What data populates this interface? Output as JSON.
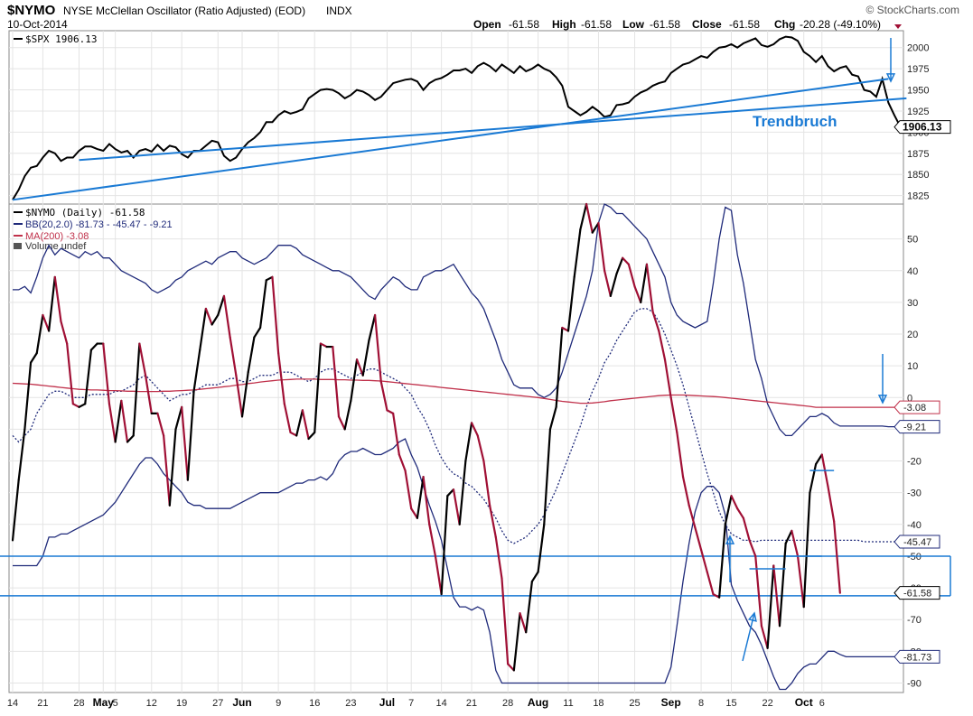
{
  "header": {
    "symbol": "$NYMO",
    "name": "NYSE McClellan Oscillator (Ratio Adjusted) (EOD)",
    "exchange": "INDX",
    "date": "10-Oct-2014",
    "watermark": "© StockCharts.com",
    "ohlc": {
      "open_label": "Open",
      "open": "-61.58",
      "high_label": "High",
      "high": "-61.58",
      "low_label": "Low",
      "low": "-61.58",
      "close_label": "Close",
      "close": "-61.58",
      "chg_label": "Chg",
      "chg": "-20.28 (-49.10%)"
    }
  },
  "colors": {
    "price_line": "#000000",
    "osc_down": "#a01035",
    "bb": "#1f2a7a",
    "ma200": "#c0304a",
    "annotation": "#1a7ad4",
    "grid": "#e4e4e4"
  },
  "annotation_text": "Trendbruch",
  "chart_data": [
    {
      "type": "line",
      "panel": "top",
      "legend": "$SPX 1906.13",
      "last_value_label": "1906.13",
      "yticks": [
        1825,
        1850,
        1875,
        1900,
        1925,
        1950,
        1975,
        2000
      ],
      "ylim": [
        1815,
        2020
      ],
      "series": [
        {
          "name": "$SPX",
          "values": [
            1820,
            1832,
            1848,
            1858,
            1860,
            1870,
            1878,
            1875,
            1866,
            1870,
            1870,
            1878,
            1883,
            1883,
            1880,
            1878,
            1886,
            1880,
            1876,
            1878,
            1870,
            1878,
            1880,
            1877,
            1885,
            1878,
            1884,
            1882,
            1874,
            1870,
            1878,
            1878,
            1884,
            1890,
            1888,
            1872,
            1866,
            1870,
            1880,
            1888,
            1893,
            1900,
            1912,
            1912,
            1920,
            1925,
            1922,
            1924,
            1927,
            1940,
            1945,
            1950,
            1951,
            1950,
            1946,
            1940,
            1944,
            1950,
            1948,
            1944,
            1938,
            1942,
            1950,
            1958,
            1960,
            1962,
            1963,
            1960,
            1950,
            1958,
            1962,
            1964,
            1968,
            1973,
            1973,
            1975,
            1970,
            1978,
            1982,
            1978,
            1972,
            1980,
            1975,
            1970,
            1978,
            1972,
            1975,
            1980,
            1975,
            1972,
            1965,
            1955,
            1930,
            1925,
            1920,
            1924,
            1930,
            1925,
            1918,
            1920,
            1932,
            1933,
            1935,
            1942,
            1947,
            1950,
            1955,
            1958,
            1960,
            1970,
            1975,
            1980,
            1982,
            1986,
            1990,
            1988,
            1995,
            2000,
            2001,
            2004,
            2000,
            2005,
            2008,
            2011,
            2003,
            2001,
            2004,
            2010,
            2013,
            2012,
            2008,
            1995,
            1990,
            1983,
            1990,
            1978,
            1972,
            1976,
            1978,
            1968,
            1966,
            1950,
            1948,
            1942,
            1963,
            1935,
            1920,
            1906.13
          ]
        }
      ],
      "trendlines": [
        {
          "x0": 0,
          "y0": 1820,
          "x1": 145,
          "y1": 1963
        },
        {
          "x0": 11,
          "y0": 1867,
          "x1": 148,
          "y1": 1940
        }
      ]
    },
    {
      "type": "line",
      "panel": "bottom",
      "legend": [
        {
          "label": "$NYMO (Daily) -61.58"
        },
        {
          "label": "BB(20,2.0) -81.73 - -45.47 - -9.21"
        },
        {
          "label": "MA(200) -3.08"
        },
        {
          "label": "Volume undef"
        }
      ],
      "yticks": [
        -90,
        -80,
        -70,
        -60,
        -50,
        -40,
        -30,
        -20,
        -10,
        0,
        10,
        20,
        30,
        40,
        50
      ],
      "ylim": [
        -93,
        61
      ],
      "last_value_labels": [
        "-3.08",
        "-9.21",
        "-45.47",
        "-61.58",
        "-81.73"
      ],
      "x_ticks": [
        {
          "i": 0,
          "label": "14",
          "bold": false
        },
        {
          "i": 5,
          "label": "21",
          "bold": false
        },
        {
          "i": 11,
          "label": "28",
          "bold": false
        },
        {
          "i": 15,
          "label": "May",
          "bold": true
        },
        {
          "i": 17,
          "label": "5",
          "bold": false
        },
        {
          "i": 23,
          "label": "12",
          "bold": false
        },
        {
          "i": 28,
          "label": "19",
          "bold": false
        },
        {
          "i": 34,
          "label": "27",
          "bold": false
        },
        {
          "i": 38,
          "label": "Jun",
          "bold": true
        },
        {
          "i": 44,
          "label": "9",
          "bold": false
        },
        {
          "i": 50,
          "label": "16",
          "bold": false
        },
        {
          "i": 56,
          "label": "23",
          "bold": false
        },
        {
          "i": 62,
          "label": "Jul",
          "bold": true
        },
        {
          "i": 66,
          "label": "7",
          "bold": false
        },
        {
          "i": 71,
          "label": "14",
          "bold": false
        },
        {
          "i": 76,
          "label": "21",
          "bold": false
        },
        {
          "i": 82,
          "label": "28",
          "bold": false
        },
        {
          "i": 87,
          "label": "Aug",
          "bold": true
        },
        {
          "i": 92,
          "label": "11",
          "bold": false
        },
        {
          "i": 97,
          "label": "18",
          "bold": false
        },
        {
          "i": 103,
          "label": "25",
          "bold": false
        },
        {
          "i": 109,
          "label": "Sep",
          "bold": true
        },
        {
          "i": 114,
          "label": "8",
          "bold": false
        },
        {
          "i": 119,
          "label": "15",
          "bold": false
        },
        {
          "i": 125,
          "label": "22",
          "bold": false
        },
        {
          "i": 131,
          "label": "Oct",
          "bold": true
        },
        {
          "i": 134,
          "label": "6",
          "bold": false
        }
      ],
      "horizontal_lines": [
        -50,
        -62.5
      ],
      "series": [
        {
          "name": "$NYMO",
          "values": [
            -45,
            -26,
            -10,
            11,
            14,
            26,
            21,
            38,
            24,
            17,
            -2,
            -3,
            -2,
            15,
            17,
            17,
            -2,
            -14,
            -1,
            -14,
            -12,
            17,
            7,
            -5,
            -5,
            -12,
            -34,
            -10,
            -3,
            -26,
            2,
            15,
            28,
            23,
            26,
            32,
            19,
            7,
            -6,
            8,
            19,
            22,
            37,
            38,
            14,
            -2,
            -11,
            -12,
            -4,
            -13,
            -11,
            17,
            16,
            16,
            -6,
            -10,
            -1,
            12,
            7,
            18,
            26,
            5,
            -4,
            -5,
            -18,
            -23,
            -35,
            -38,
            -25,
            -40,
            -50,
            -62,
            -31,
            -29,
            -40,
            -20,
            -8,
            -12,
            -20,
            -34,
            -44,
            -57,
            -84,
            -86,
            -68,
            -74,
            -58,
            -55,
            -40,
            -10,
            -3,
            22,
            21,
            38,
            53,
            61,
            52,
            55,
            40,
            32,
            39,
            44,
            42,
            35,
            30,
            42,
            27,
            21,
            12,
            0,
            -11,
            -25,
            -34,
            -41,
            -48,
            -55,
            -62,
            -63,
            -40,
            -31,
            -35,
            -38,
            -45,
            -50,
            -72,
            -79,
            -53,
            -72,
            -46,
            -42,
            -50,
            -66,
            -30,
            -21,
            -18,
            -28,
            -39,
            -61.58
          ],
          "colors_by_segment": "black when rising, red when falling"
        },
        {
          "name": "BB(20,2.0) upper",
          "values": [
            34,
            34,
            35,
            33,
            38,
            44,
            48,
            45,
            47,
            46,
            45,
            44,
            46,
            45,
            46,
            44,
            44,
            42,
            40,
            39,
            38,
            37,
            36,
            34,
            33,
            34,
            35,
            37,
            38,
            40,
            41,
            42,
            43,
            42,
            44,
            45,
            46,
            46,
            44,
            43,
            42,
            43,
            44,
            46,
            48,
            48,
            48,
            47,
            45,
            44,
            43,
            42,
            41,
            40,
            40,
            39,
            38,
            36,
            34,
            32,
            31,
            34,
            36,
            38,
            37,
            35,
            34,
            34,
            38,
            39,
            40,
            40,
            41,
            42,
            39,
            36,
            33,
            31,
            28,
            23,
            18,
            12,
            8,
            4,
            3,
            3,
            3,
            1,
            0,
            1,
            3,
            8,
            14,
            20,
            26,
            32,
            40,
            55,
            61,
            60,
            58,
            58,
            56,
            54,
            52,
            50,
            46,
            42,
            38,
            30,
            26,
            24,
            23,
            22,
            23,
            24,
            36,
            50,
            60,
            59,
            45,
            36,
            24,
            12,
            6,
            -2,
            -6,
            -10,
            -12
          ],
          "note": "partial, first 129 bars; remainder rendered by script"
        },
        {
          "name": "BB(20,2.0) middle",
          "values": [
            -12,
            -14,
            -12,
            -10,
            -5,
            -2,
            1,
            2,
            2,
            1,
            0,
            0,
            0,
            1,
            1,
            1,
            1,
            2,
            2,
            3,
            4,
            6,
            7,
            5,
            3,
            1,
            -1,
            0,
            1,
            1,
            2,
            3,
            4,
            4,
            4,
            5,
            6,
            6,
            5,
            5,
            6,
            7,
            7,
            7,
            8,
            8,
            8,
            7,
            6,
            5,
            6,
            8,
            9,
            9,
            8,
            7,
            6,
            7,
            8,
            9,
            9,
            8,
            7,
            6,
            5,
            3,
            1,
            -3,
            -6,
            -10,
            -15,
            -19,
            -22,
            -24,
            -25,
            -27,
            -28,
            -30,
            -32,
            -35,
            -38,
            -42,
            -45,
            -46,
            -45,
            -44,
            -42,
            -40,
            -37,
            -33,
            -29,
            -24,
            -19,
            -14,
            -9,
            -3,
            2,
            6,
            11,
            14,
            18,
            21,
            24,
            27,
            28,
            28,
            27,
            24,
            20,
            15,
            10,
            4,
            -3,
            -10,
            -17,
            -24,
            -30,
            -36,
            -40,
            -43,
            -44,
            -45,
            -45,
            -45.47
          ],
          "note": "first 128 bars; remainder rendered by script"
        },
        {
          "name": "BB(20,2.0) lower",
          "values": [
            -53,
            -53,
            -53,
            -53,
            -53,
            -50,
            -44,
            -44,
            -43,
            -43,
            -42,
            -41,
            -40,
            -39,
            -38,
            -37,
            -35,
            -33,
            -30,
            -27,
            -24,
            -21,
            -19,
            -19,
            -21,
            -24,
            -26,
            -28,
            -30,
            -33,
            -34,
            -34,
            -35,
            -35,
            -35,
            -35,
            -35,
            -34,
            -33,
            -32,
            -31,
            -30,
            -30,
            -30,
            -30,
            -29,
            -28,
            -27,
            -27,
            -26,
            -26,
            -25,
            -26,
            -24,
            -20,
            -18,
            -17,
            -17,
            -16,
            -17,
            -18,
            -18,
            -17,
            -16,
            -14,
            -13,
            -18,
            -22,
            -28,
            -34,
            -39,
            -45,
            -54,
            -63,
            -66,
            -66,
            -67,
            -66,
            -67,
            -74,
            -86,
            -90,
            -90,
            -90,
            -90,
            -90,
            -90,
            -90,
            -90,
            -90,
            -90,
            -90,
            -90,
            -90,
            -90,
            -90,
            -90,
            -90,
            -90,
            -90,
            -90,
            -90,
            -90,
            -90,
            -90,
            -90,
            -90,
            -90,
            -90,
            -85,
            -72,
            -58,
            -46,
            -36,
            -30,
            -28,
            -28,
            -30,
            -37,
            -59,
            -64,
            -68,
            -72,
            -74,
            -78,
            -83,
            -88,
            -92,
            -92,
            -90,
            -87,
            -85,
            -84,
            -84,
            -82,
            -80,
            -80,
            -81,
            -81.73
          ],
          "note": "values below -90 clipped to panel"
        },
        {
          "name": "MA(200)",
          "values": [
            4.5,
            4.4,
            4.3,
            4.2,
            4,
            3.8,
            3.6,
            3.4,
            3.2,
            3,
            2.8,
            2.6,
            2.5,
            2.4,
            2.4,
            2.3,
            2.2,
            2.2,
            2.1,
            2,
            2,
            1.9,
            1.9,
            1.9,
            1.9,
            2,
            2,
            2.1,
            2.2,
            2.3,
            2.4,
            2.6,
            2.8,
            3,
            3.2,
            3.4,
            3.6,
            3.9,
            4.1,
            4.4,
            4.6,
            4.9,
            5.1,
            5.3,
            5.5,
            5.6,
            5.7,
            5.8,
            5.8,
            5.8,
            5.8,
            5.7,
            5.7,
            5.7,
            5.6,
            5.6,
            5.5,
            5.5,
            5.4,
            5.4,
            5.3,
            5.2,
            5,
            4.8,
            4.6,
            4.4,
            4.2,
            4,
            3.8,
            3.6,
            3.4,
            3.2,
            3,
            2.8,
            2.6,
            2.4,
            2.2,
            2,
            1.8,
            1.6,
            1.4,
            1.2,
            1,
            0.8,
            0.6,
            0.4,
            0.2,
            0,
            -0.3,
            -0.6,
            -0.9,
            -1.2,
            -1.4,
            -1.6,
            -1.8,
            -1.8,
            -1.7,
            -1.5,
            -1.3,
            -1,
            -0.8,
            -0.6,
            -0.4,
            -0.2,
            0,
            0.2,
            0.4,
            0.6,
            0.7,
            0.8,
            0.8,
            0.8,
            0.7,
            0.6,
            0.5,
            0.4,
            0.3,
            0.2,
            0,
            -0.2,
            -0.4,
            -0.6,
            -0.8,
            -1,
            -1.2,
            -1.4,
            -1.6,
            -1.8,
            -2,
            -2.2,
            -2.4,
            -2.6,
            -2.8,
            -3.08
          ]
        }
      ]
    }
  ]
}
